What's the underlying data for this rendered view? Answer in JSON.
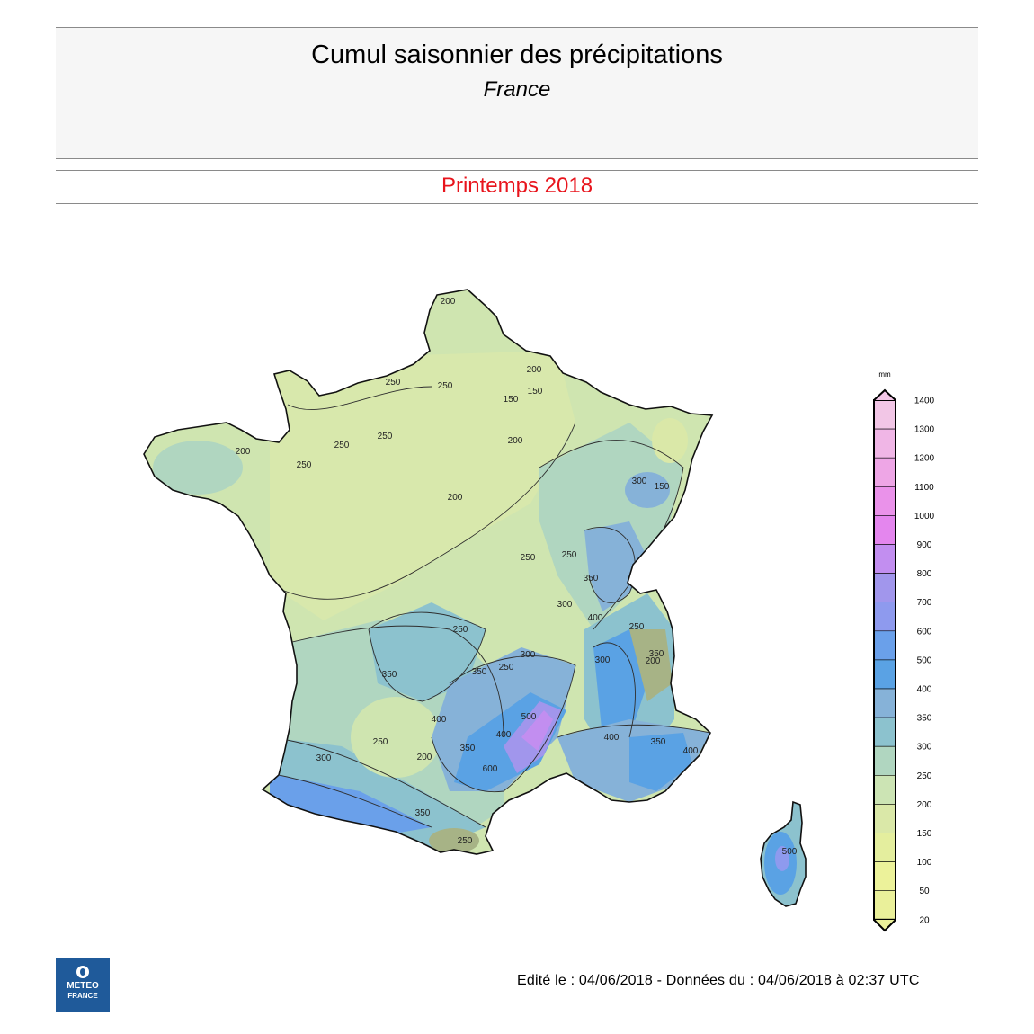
{
  "header": {
    "title": "Cumul saisonnier des précipitations",
    "subtitle": "France",
    "season": "Printemps 2018"
  },
  "footer": {
    "text": "Edité le : 04/06/2018 - Données du : 04/06/2018 à 02:37 UTC"
  },
  "logo": {
    "line1": "METEO",
    "line2": "FRANCE"
  },
  "legend": {
    "unit": "mm",
    "ticks": [
      "1400",
      "1300",
      "1200",
      "1100",
      "1000",
      "900",
      "800",
      "700",
      "600",
      "500",
      "400",
      "350",
      "300",
      "250",
      "200",
      "150",
      "100",
      "50",
      "20"
    ],
    "colors": [
      "#f2c6e6",
      "#f0b6e6",
      "#eea6e6",
      "#ea92ea",
      "#e486ee",
      "#c28ef0",
      "#a196ec",
      "#8e9aee",
      "#6aa0ea",
      "#5aa2e4",
      "#86b2d8",
      "#8cc2ce",
      "#b0d6c0",
      "#cce4b4",
      "#dae8a8",
      "#e4ee9e",
      "#ecf29a",
      "#eaf09a"
    ]
  },
  "contour_labels": [
    "200",
    "250",
    "250",
    "250",
    "250",
    "250",
    "200",
    "150",
    "150",
    "200",
    "200",
    "300",
    "150",
    "250",
    "200",
    "250",
    "250",
    "300",
    "350",
    "400",
    "300",
    "250",
    "350",
    "300",
    "250",
    "200",
    "350",
    "400",
    "350",
    "400",
    "400",
    "250",
    "350",
    "350",
    "500",
    "600",
    "300",
    "350",
    "250",
    "200",
    "500",
    "400"
  ],
  "colors": {
    "season_red": "#e8141c",
    "country_outline": "#111111",
    "contour_line": "#333333"
  }
}
